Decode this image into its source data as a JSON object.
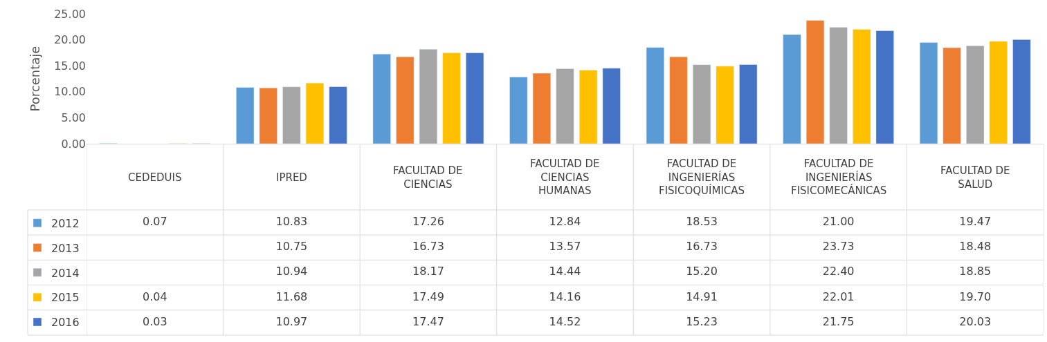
{
  "chart_data": {
    "type": "bar",
    "ylabel": "Porcentaje",
    "categories": [
      "CEDEDUIS",
      "IPRED",
      "FACULTAD DE CIENCIAS",
      "FACULTAD DE CIENCIAS HUMANAS",
      "FACULTAD DE INGENIERÍAS FISICOQUÍMICAS",
      "FACULTAD DE INGENIERÍAS FISICOMECÁNICAS",
      "FACULTAD DE SALUD"
    ],
    "series": [
      {
        "name": "2012",
        "color": "#5b9bd5",
        "values": [
          0.07,
          10.83,
          17.26,
          12.84,
          18.53,
          21.0,
          19.47
        ],
        "value_labels": [
          "0.07",
          "10.83",
          "17.26",
          "12.84",
          "18.53",
          "21.00",
          "19.47"
        ]
      },
      {
        "name": "2013",
        "color": "#ed7d31",
        "values": [
          null,
          10.75,
          16.73,
          13.57,
          16.73,
          23.73,
          18.48
        ],
        "value_labels": [
          null,
          "10.75",
          "16.73",
          "13.57",
          "16.73",
          "23.73",
          "18.48"
        ]
      },
      {
        "name": "2014",
        "color": "#a5a5a5",
        "values": [
          null,
          10.94,
          18.17,
          14.44,
          15.2,
          22.4,
          18.85
        ],
        "value_labels": [
          null,
          "10.94",
          "18.17",
          "14.44",
          "15.20",
          "22.40",
          "18.85"
        ]
      },
      {
        "name": "2015",
        "color": "#ffc000",
        "values": [
          0.04,
          11.68,
          17.49,
          14.16,
          14.91,
          22.01,
          19.7
        ],
        "value_labels": [
          "0.04",
          "11.68",
          "17.49",
          "14.16",
          "14.91",
          "22.01",
          "19.70"
        ]
      },
      {
        "name": "2016",
        "color": "#4472c4",
        "values": [
          0.03,
          10.97,
          17.47,
          14.52,
          15.23,
          21.75,
          20.03
        ],
        "value_labels": [
          "0.03",
          "10.97",
          "17.47",
          "14.52",
          "15.23",
          "21.75",
          "20.03"
        ]
      }
    ],
    "ylim": [
      0,
      25
    ],
    "yticks": [
      {
        "value": 0,
        "label": "0.00"
      },
      {
        "value": 5,
        "label": "5.00"
      },
      {
        "value": 10,
        "label": "10.00"
      },
      {
        "value": 15,
        "label": "15.00"
      },
      {
        "value": 20,
        "label": "20.00"
      },
      {
        "value": 25,
        "label": "25.00"
      }
    ],
    "legend": "bottom left"
  }
}
